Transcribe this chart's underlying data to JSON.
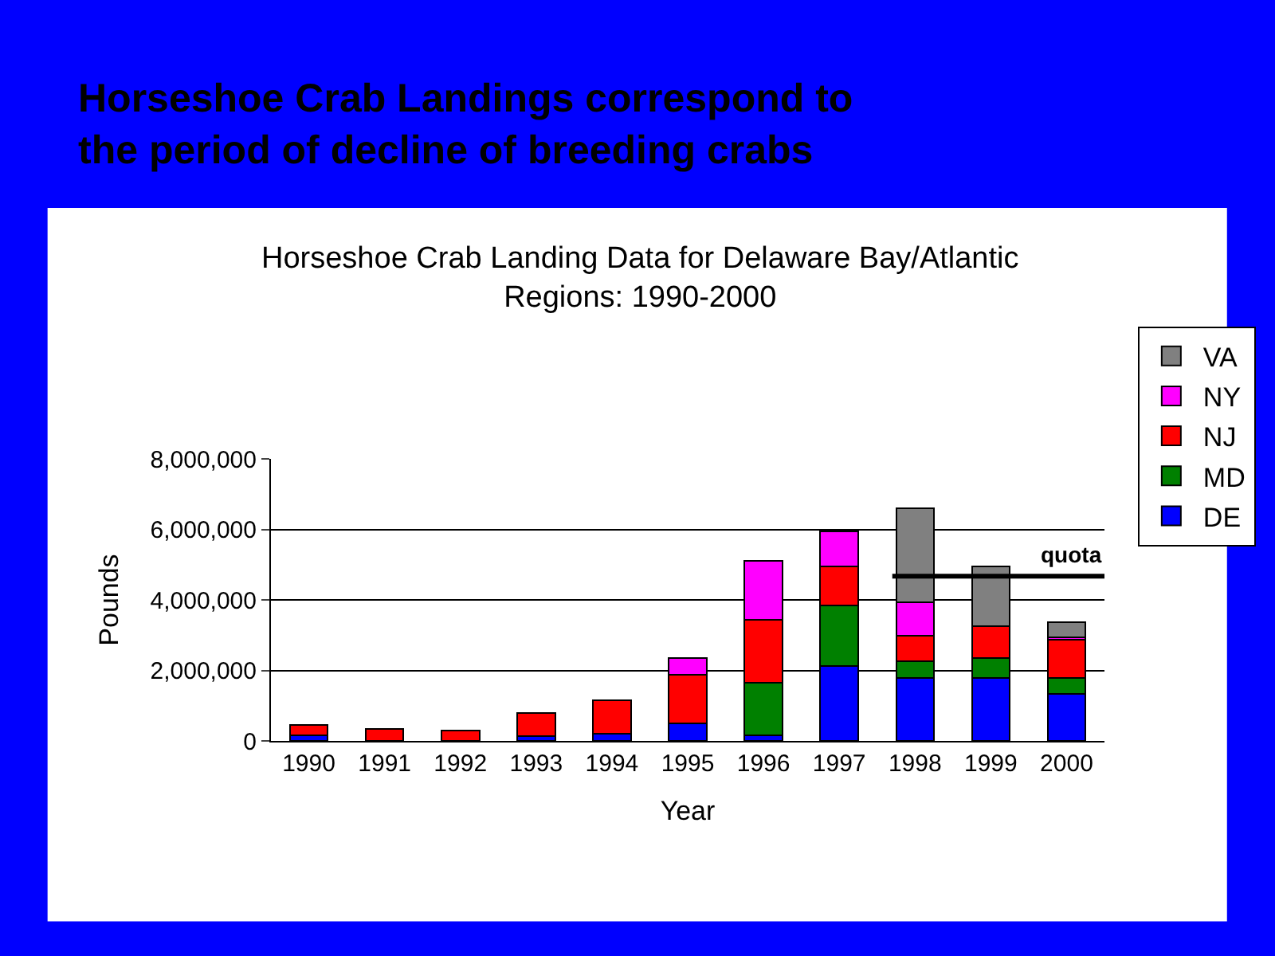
{
  "chart_data": {
    "type": "bar",
    "stacked": true,
    "title": "Horseshoe Crab Landings correspond to\nthe period of decline of breeding crabs",
    "subtitle": "Horseshoe Crab Landing Data for Delaware Bay/Atlantic\nRegions: 1990-2000",
    "xlabel": "Year",
    "ylabel": "Pounds",
    "categories": [
      "1990",
      "1991",
      "1992",
      "1993",
      "1994",
      "1995",
      "1996",
      "1997",
      "1998",
      "1999",
      "2000"
    ],
    "series": [
      {
        "name": "DE",
        "color": "#0000ff",
        "values": [
          160000,
          null,
          null,
          130000,
          210000,
          490000,
          160000,
          2130000,
          1790000,
          1790000,
          1330000
        ]
      },
      {
        "name": "MD",
        "color": "#008000",
        "values": [
          null,
          null,
          null,
          null,
          null,
          null,
          1480000,
          1710000,
          480000,
          550000,
          450000
        ]
      },
      {
        "name": "NJ",
        "color": "#ff0000",
        "values": [
          300000,
          340000,
          300000,
          660000,
          940000,
          1380000,
          1790000,
          1120000,
          720000,
          910000,
          1090000
        ]
      },
      {
        "name": "NY",
        "color": "#ff00ff",
        "values": [
          null,
          null,
          null,
          null,
          null,
          490000,
          1670000,
          980000,
          940000,
          null,
          60000
        ]
      },
      {
        "name": "VA",
        "color": "#808080",
        "values": [
          null,
          null,
          null,
          null,
          null,
          null,
          null,
          null,
          2680000,
          1710000,
          430000
        ]
      }
    ],
    "ylim": [
      0,
      8000000
    ],
    "yticks": [
      {
        "value": 0,
        "label": "0"
      },
      {
        "value": 2000000,
        "label": "2,000,000"
      },
      {
        "value": 4000000,
        "label": "4,000,000"
      },
      {
        "value": 6000000,
        "label": "6,000,000"
      },
      {
        "value": 8000000,
        "label": "8,000,000"
      }
    ],
    "grid": "y",
    "legend": "right",
    "ref_lines": [
      {
        "axis": "y",
        "value": 4670000,
        "label": "quota",
        "color": "#000000"
      }
    ]
  }
}
